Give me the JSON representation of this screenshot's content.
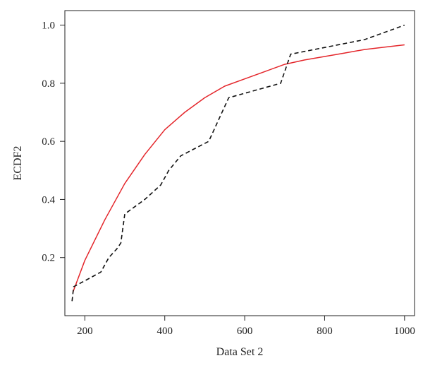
{
  "chart_data": {
    "type": "line",
    "title": "",
    "xlabel": "Data Set 2",
    "ylabel": "ECDF2",
    "xlim": [
      150,
      1025
    ],
    "ylim": [
      0,
      1.05
    ],
    "xticks": [
      200,
      400,
      600,
      800,
      1000
    ],
    "xtick_labels": [
      "200",
      "400",
      "600",
      "800",
      "1000"
    ],
    "yticks": [
      0.2,
      0.4,
      0.6,
      0.8,
      1.0
    ],
    "ytick_labels": [
      "0.2",
      "0.4",
      "0.6",
      "0.8",
      "1.0"
    ],
    "grid": false,
    "legend": "none",
    "series": [
      {
        "color": "#e4262b",
        "style": "solid",
        "x": [
          170,
          200,
          250,
          300,
          350,
          400,
          450,
          500,
          550,
          600,
          650,
          700,
          750,
          800,
          850,
          900,
          950,
          1000
        ],
        "y": [
          0.08,
          0.19,
          0.33,
          0.455,
          0.555,
          0.64,
          0.7,
          0.75,
          0.79,
          0.815,
          0.84,
          0.865,
          0.88,
          0.892,
          0.904,
          0.916,
          0.924,
          0.932
        ]
      },
      {
        "color": "#111111",
        "style": "dashed",
        "x": [
          168,
          172,
          200,
          240,
          260,
          280,
          290,
          300,
          350,
          390,
          410,
          440,
          510,
          560,
          690,
          715,
          900,
          1000
        ],
        "y": [
          0.05,
          0.1,
          0.12,
          0.15,
          0.2,
          0.23,
          0.25,
          0.35,
          0.4,
          0.45,
          0.5,
          0.55,
          0.6,
          0.75,
          0.8,
          0.9,
          0.95,
          1.0
        ]
      }
    ]
  }
}
